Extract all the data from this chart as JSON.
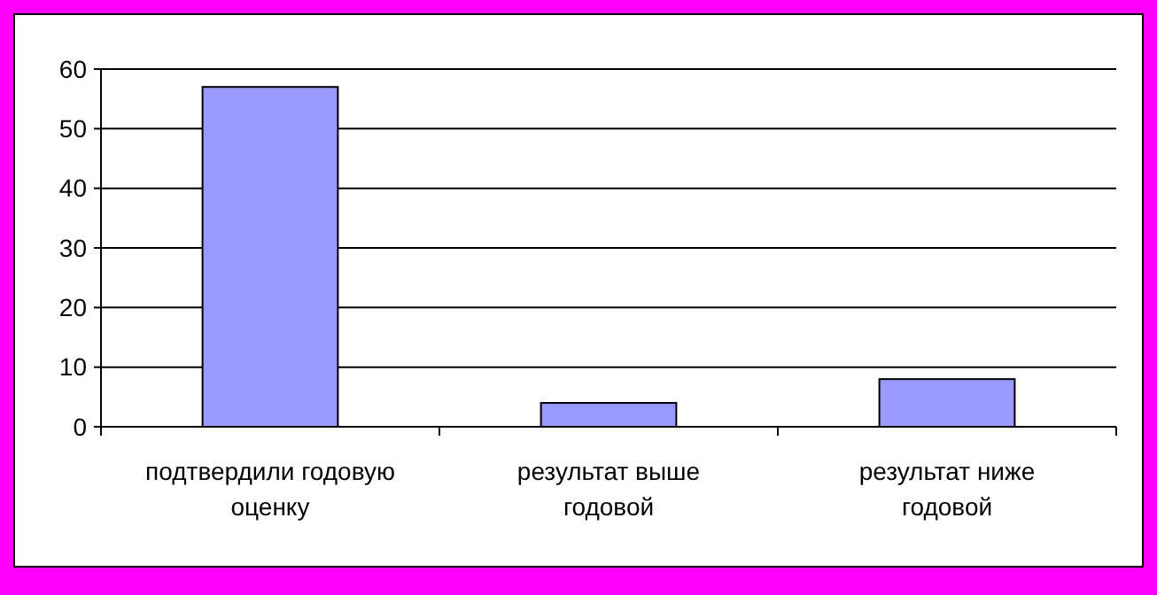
{
  "chart_data": {
    "type": "bar",
    "categories": [
      "подтвердили годовую оценку",
      "результат выше годовой",
      "результат ниже годовой"
    ],
    "values": [
      57,
      4,
      8
    ],
    "color": "#9999ff",
    "ylim": [
      0,
      60
    ],
    "yticks": [
      0,
      10,
      20,
      30,
      40,
      50,
      60
    ],
    "grid": "y"
  }
}
